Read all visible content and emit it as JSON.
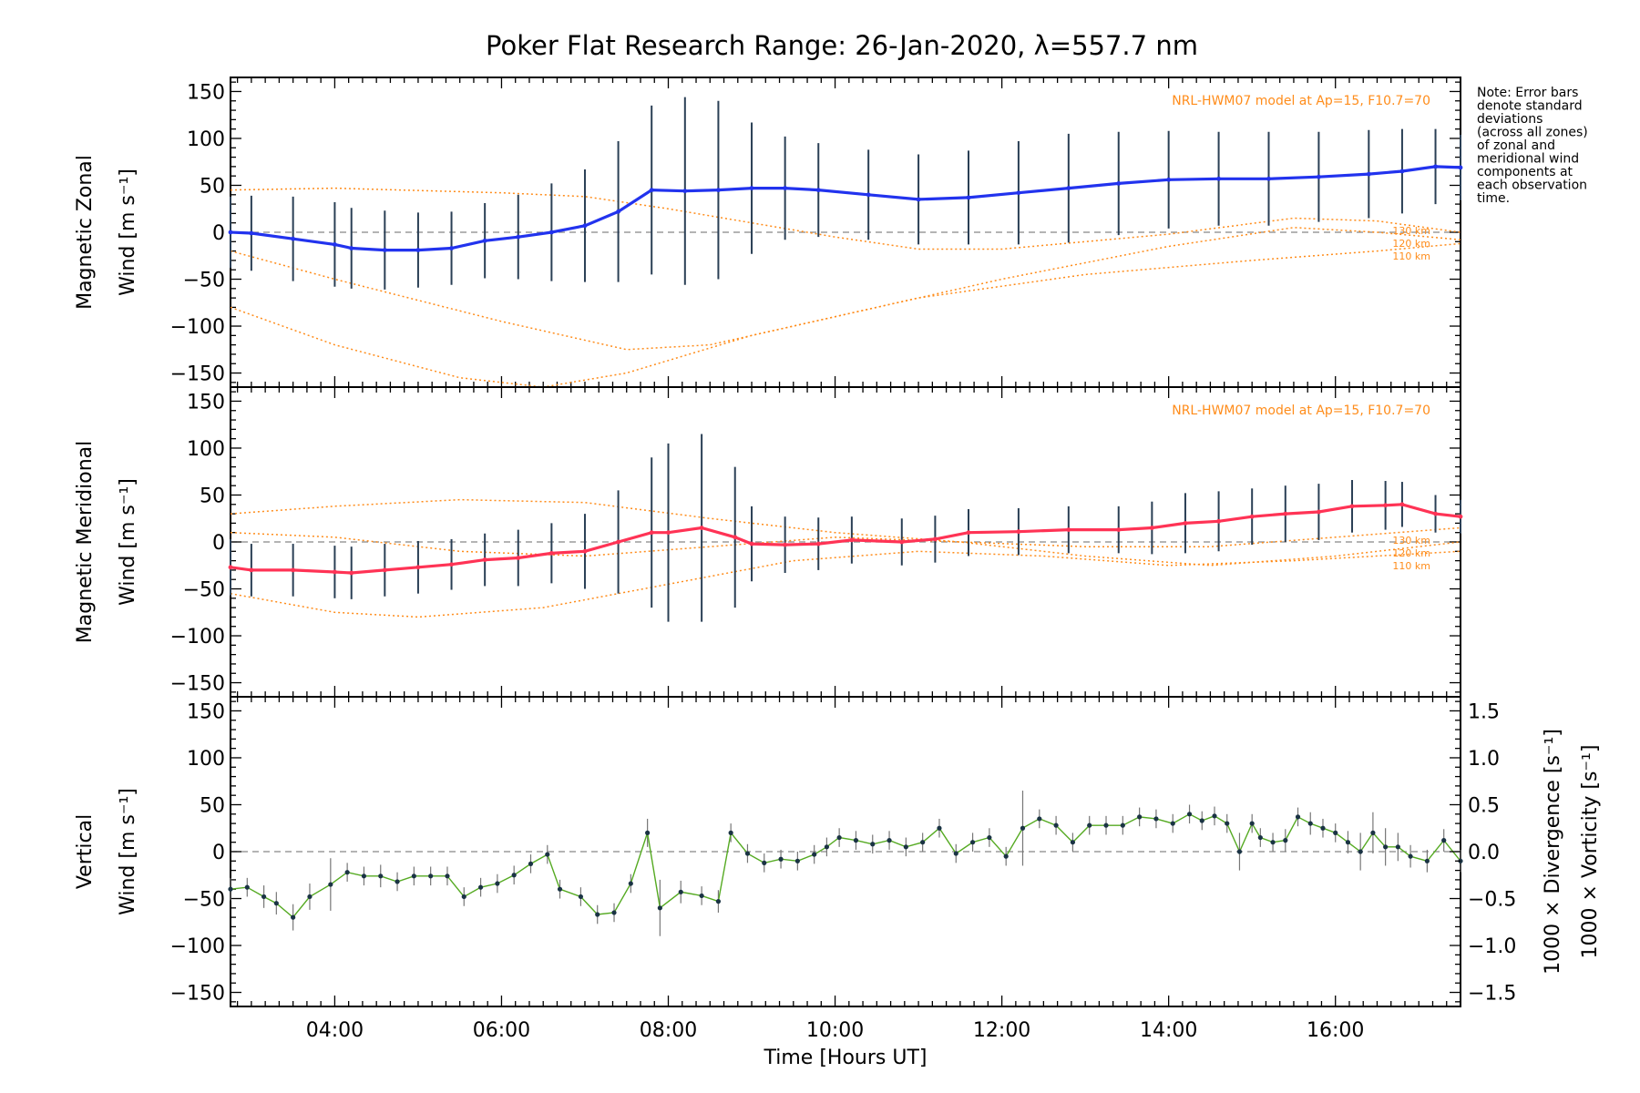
{
  "title": "Poker Flat Research Range: 26-Jan-2020, λ=557.7 nm",
  "note_lines": [
    "Note: Error bars",
    "denote standard",
    "deviations",
    "(across all zones)",
    "of zonal and",
    "meridional wind",
    "components at",
    "each observation",
    "time."
  ],
  "model_label": "NRL-HWM07 model at Ap=15, F10.7=70",
  "altitude_labels": [
    "130 km",
    "120 km",
    "110 km"
  ],
  "x_axis": {
    "title": "Time [Hours UT]",
    "tick_labels": [
      "04:00",
      "06:00",
      "08:00",
      "10:00",
      "12:00",
      "14:00",
      "16:00"
    ],
    "tick_hours": [
      4,
      6,
      8,
      10,
      12,
      14,
      16
    ],
    "range_hours": [
      2.75,
      17.5
    ]
  },
  "colors": {
    "zonal_line": "#2233ee",
    "meridional_line": "#ff3355",
    "vertical_line": "#55aa22",
    "model": "#ff8c1a",
    "divergence_label": "#55b8e8",
    "vorticity_label": "#ff4f9a",
    "vertical_label": "#55aa22"
  },
  "chart_data": [
    {
      "type": "line",
      "panel": "zonal",
      "ylabel_lines": [
        "Magnetic Zonal",
        "Wind [m s⁻¹]"
      ],
      "y_tick_labels": [
        "150",
        "100",
        "50",
        "0",
        "−50",
        "−100",
        "−150"
      ],
      "ylim": [
        -165,
        165
      ],
      "series": [
        {
          "x": [
            2.75,
            3.0,
            3.5,
            4.0,
            4.2,
            4.6,
            5.0,
            5.4,
            5.8,
            6.2,
            6.6,
            7.0,
            7.4,
            7.8,
            8.2,
            8.6,
            9.0,
            9.4,
            9.8,
            10.4,
            11.0,
            11.6,
            12.2,
            12.8,
            13.4,
            14.0,
            14.6,
            15.2,
            15.8,
            16.4,
            16.8,
            17.2,
            17.5
          ],
          "y": [
            0,
            -1,
            -7,
            -13,
            -17,
            -19,
            -19,
            -17,
            -9,
            -5,
            0,
            7,
            22,
            45,
            44,
            45,
            47,
            47,
            45,
            40,
            35,
            37,
            42,
            47,
            52,
            56,
            57,
            57,
            59,
            62,
            65,
            70,
            69
          ],
          "error": [
            38,
            40,
            45,
            45,
            43,
            42,
            40,
            39,
            40,
            45,
            52,
            60,
            75,
            90,
            100,
            95,
            70,
            55,
            50,
            48,
            48,
            50,
            55,
            58,
            55,
            52,
            50,
            50,
            48,
            47,
            45,
            40,
            35
          ]
        }
      ],
      "model_curves": {
        "130 km": {
          "x": [
            2.75,
            4.0,
            6.0,
            7.0,
            8.0,
            10.0,
            11.0,
            12.0,
            14.0,
            15.5,
            16.5,
            17.5
          ],
          "y": [
            45,
            47,
            42,
            38,
            25,
            -5,
            -18,
            -18,
            -2,
            15,
            12,
            0
          ]
        },
        "120 km": {
          "x": [
            2.75,
            4.0,
            6.0,
            7.5,
            8.5,
            10.0,
            12.0,
            14.0,
            15.5,
            16.5,
            17.5
          ],
          "y": [
            -20,
            -50,
            -95,
            -125,
            -120,
            -90,
            -50,
            -15,
            5,
            0,
            -8
          ]
        },
        "110 km": {
          "x": [
            2.75,
            4.0,
            5.5,
            6.5,
            7.5,
            9.0,
            11.0,
            13.0,
            15.0,
            16.5,
            17.5
          ],
          "y": [
            -80,
            -120,
            -155,
            -165,
            -150,
            -110,
            -70,
            -45,
            -30,
            -20,
            -12
          ]
        }
      }
    },
    {
      "type": "line",
      "panel": "meridional",
      "ylabel_lines": [
        "Magnetic Meridional",
        "Wind [m s⁻¹]"
      ],
      "y_tick_labels": [
        "150",
        "100",
        "50",
        "0",
        "−50",
        "−100",
        "−150"
      ],
      "ylim": [
        -165,
        165
      ],
      "series": [
        {
          "x": [
            2.75,
            3.0,
            3.5,
            4.0,
            4.2,
            4.6,
            5.0,
            5.4,
            5.8,
            6.2,
            6.6,
            7.0,
            7.4,
            7.8,
            8.0,
            8.4,
            8.8,
            9.0,
            9.4,
            9.8,
            10.2,
            10.8,
            11.2,
            11.6,
            12.2,
            12.8,
            13.4,
            13.8,
            14.2,
            14.6,
            15.0,
            15.4,
            15.8,
            16.2,
            16.6,
            16.8,
            17.2,
            17.5
          ],
          "y": [
            -27,
            -30,
            -30,
            -32,
            -33,
            -30,
            -27,
            -24,
            -19,
            -17,
            -12,
            -10,
            0,
            10,
            10,
            15,
            5,
            -2,
            -3,
            -2,
            2,
            0,
            3,
            10,
            11,
            13,
            13,
            15,
            20,
            22,
            27,
            30,
            32,
            38,
            39,
            40,
            30,
            27
          ],
          "error": [
            30,
            28,
            28,
            28,
            28,
            28,
            28,
            27,
            28,
            30,
            32,
            40,
            55,
            80,
            95,
            100,
            75,
            40,
            30,
            28,
            25,
            25,
            25,
            25,
            25,
            25,
            25,
            28,
            32,
            32,
            30,
            30,
            30,
            28,
            26,
            24,
            20,
            18
          ]
        }
      ],
      "model_curves": {
        "130 km": {
          "x": [
            2.75,
            4.0,
            5.5,
            7.0,
            8.5,
            10.0,
            11.5,
            13.0,
            14.5,
            16.0,
            17.5
          ],
          "y": [
            30,
            38,
            45,
            42,
            25,
            10,
            0,
            -5,
            -5,
            5,
            15
          ]
        },
        "120 km": {
          "x": [
            2.75,
            4.0,
            5.5,
            7.0,
            8.5,
            10.0,
            11.5,
            13.0,
            14.5,
            16.0,
            17.5
          ],
          "y": [
            10,
            5,
            -10,
            -15,
            -5,
            5,
            0,
            -15,
            -25,
            -15,
            0
          ]
        },
        "110 km": {
          "x": [
            2.75,
            4.0,
            5.0,
            6.5,
            8.0,
            9.5,
            11.0,
            12.5,
            14.0,
            15.5,
            17.5
          ],
          "y": [
            -55,
            -75,
            -80,
            -70,
            -45,
            -20,
            -10,
            -15,
            -25,
            -20,
            -10
          ]
        }
      }
    },
    {
      "type": "line",
      "panel": "vertical",
      "ylabel_lines": [
        "Vertical",
        "Wind [m s⁻¹]"
      ],
      "y_tick_labels": [
        "150",
        "100",
        "50",
        "0",
        "−50",
        "−100",
        "−150"
      ],
      "ylim": [
        -165,
        165
      ],
      "right_axis": {
        "tick_labels": [
          "1.5",
          "1.0",
          "0.5",
          "0.0",
          "−0.5",
          "−1.0",
          "−1.5"
        ],
        "label_divergence": "1000 × Divergence [s⁻¹]",
        "label_vorticity": "1000 × Vorticity [s⁻¹]"
      },
      "series": [
        {
          "x": [
            2.75,
            2.95,
            3.15,
            3.3,
            3.5,
            3.7,
            3.95,
            4.15,
            4.35,
            4.55,
            4.75,
            4.95,
            5.15,
            5.35,
            5.55,
            5.75,
            5.95,
            6.15,
            6.35,
            6.55,
            6.7,
            6.95,
            7.15,
            7.35,
            7.55,
            7.75,
            7.9,
            8.15,
            8.4,
            8.6,
            8.75,
            8.95,
            9.15,
            9.35,
            9.55,
            9.75,
            9.9,
            10.05,
            10.25,
            10.45,
            10.65,
            10.85,
            11.05,
            11.25,
            11.45,
            11.65,
            11.85,
            12.05,
            12.25,
            12.45,
            12.65,
            12.85,
            13.05,
            13.25,
            13.45,
            13.65,
            13.85,
            14.05,
            14.25,
            14.4,
            14.55,
            14.7,
            14.85,
            15.0,
            15.1,
            15.25,
            15.4,
            15.55,
            15.7,
            15.85,
            16.0,
            16.15,
            16.3,
            16.45,
            16.6,
            16.75,
            16.9,
            17.1,
            17.3,
            17.5
          ],
          "y": [
            -40,
            -38,
            -48,
            -55,
            -70,
            -48,
            -35,
            -22,
            -26,
            -26,
            -32,
            -26,
            -26,
            -26,
            -48,
            -38,
            -34,
            -25,
            -13,
            -3,
            -40,
            -48,
            -67,
            -65,
            -34,
            20,
            -60,
            -43,
            -47,
            -53,
            20,
            -2,
            -12,
            -8,
            -10,
            -3,
            5,
            15,
            12,
            8,
            12,
            5,
            10,
            25,
            -2,
            10,
            15,
            -5,
            25,
            35,
            28,
            10,
            28,
            28,
            28,
            37,
            35,
            30,
            40,
            33,
            38,
            30,
            0,
            30,
            15,
            10,
            12,
            37,
            30,
            25,
            20,
            10,
            0,
            20,
            5,
            5,
            -5,
            -10,
            12,
            -10
          ],
          "error": [
            12,
            10,
            12,
            12,
            14,
            14,
            28,
            10,
            10,
            12,
            10,
            10,
            10,
            10,
            10,
            10,
            10,
            10,
            10,
            10,
            10,
            10,
            10,
            10,
            10,
            15,
            30,
            12,
            10,
            12,
            10,
            10,
            10,
            10,
            10,
            10,
            10,
            10,
            10,
            10,
            10,
            10,
            10,
            10,
            10,
            10,
            10,
            10,
            40,
            10,
            10,
            10,
            10,
            10,
            10,
            10,
            10,
            10,
            10,
            10,
            10,
            10,
            20,
            10,
            10,
            10,
            12,
            10,
            12,
            10,
            10,
            12,
            20,
            22,
            20,
            15,
            12,
            12,
            12,
            12
          ]
        }
      ]
    }
  ]
}
